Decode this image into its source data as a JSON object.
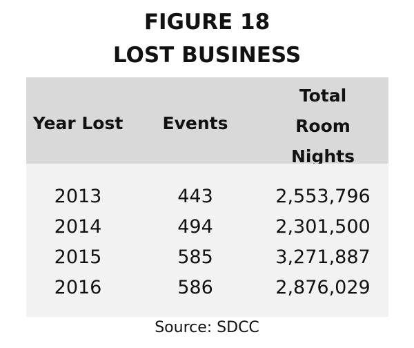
{
  "figure": {
    "title_line1": "FIGURE 18",
    "title_line2": "LOST BUSINESS"
  },
  "table": {
    "headers": {
      "year": "Year Lost",
      "events": "Events",
      "nights_line1": "Total",
      "nights_line2": "Room",
      "nights_line3": "Nights"
    },
    "rows": [
      {
        "year": "2013",
        "events": "443",
        "nights": "2,553,796"
      },
      {
        "year": "2014",
        "events": "494",
        "nights": "2,301,500"
      },
      {
        "year": "2015",
        "events": "585",
        "nights": "3,271,887"
      },
      {
        "year": "2016",
        "events": "586",
        "nights": "2,876,029"
      }
    ]
  },
  "source": "Source: SDCC",
  "colors": {
    "header_bg": "#d9d9d9",
    "body_bg": "#f2f2f2",
    "text": "#111111"
  }
}
